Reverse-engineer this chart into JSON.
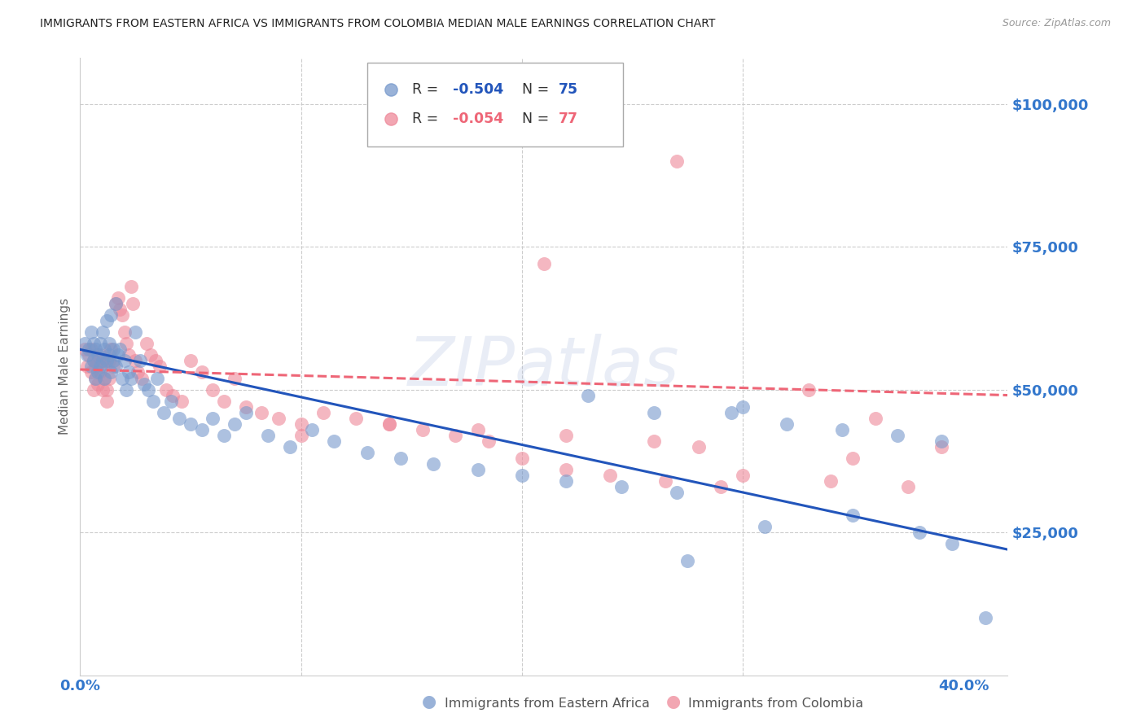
{
  "title": "IMMIGRANTS FROM EASTERN AFRICA VS IMMIGRANTS FROM COLOMBIA MEDIAN MALE EARNINGS CORRELATION CHART",
  "source": "Source: ZipAtlas.com",
  "ylabel": "Median Male Earnings",
  "xlim": [
    0.0,
    0.42
  ],
  "ylim": [
    0,
    108000
  ],
  "yticks": [
    25000,
    50000,
    75000,
    100000
  ],
  "ytick_labels": [
    "$25,000",
    "$50,000",
    "$75,000",
    "$100,000"
  ],
  "xticks": [
    0.0,
    0.1,
    0.2,
    0.3,
    0.4
  ],
  "xtick_labels": [
    "0.0%",
    "",
    "",
    "",
    "40.0%"
  ],
  "background_color": "#ffffff",
  "grid_color": "#cccccc",
  "blue_color": "#7799cc",
  "pink_color": "#ee8899",
  "blue_line_color": "#2255bb",
  "pink_line_color": "#ee6677",
  "title_color": "#222222",
  "axis_label_color": "#666666",
  "tick_label_color": "#3377cc",
  "watermark": "ZIPatlas",
  "legend_R_blue": "-0.504",
  "legend_N_blue": "75",
  "legend_R_pink": "-0.054",
  "legend_N_pink": "77",
  "legend_label_blue": "Immigrants from Eastern Africa",
  "legend_label_pink": "Immigrants from Colombia",
  "blue_scatter_x": [
    0.002,
    0.003,
    0.004,
    0.005,
    0.005,
    0.006,
    0.006,
    0.007,
    0.007,
    0.008,
    0.008,
    0.009,
    0.009,
    0.01,
    0.01,
    0.011,
    0.011,
    0.012,
    0.012,
    0.013,
    0.013,
    0.014,
    0.014,
    0.015,
    0.015,
    0.016,
    0.016,
    0.017,
    0.018,
    0.019,
    0.02,
    0.021,
    0.022,
    0.023,
    0.025,
    0.027,
    0.029,
    0.031,
    0.033,
    0.035,
    0.038,
    0.041,
    0.045,
    0.05,
    0.055,
    0.06,
    0.065,
    0.07,
    0.075,
    0.085,
    0.095,
    0.105,
    0.115,
    0.13,
    0.145,
    0.16,
    0.18,
    0.2,
    0.22,
    0.245,
    0.27,
    0.295,
    0.23,
    0.26,
    0.3,
    0.32,
    0.345,
    0.37,
    0.39,
    0.275,
    0.31,
    0.35,
    0.38,
    0.395,
    0.41
  ],
  "blue_scatter_y": [
    58000,
    56000,
    57000,
    60000,
    54000,
    55000,
    58000,
    52000,
    57000,
    53000,
    56000,
    54000,
    58000,
    55000,
    60000,
    57000,
    52000,
    62000,
    55000,
    56000,
    58000,
    53000,
    63000,
    57000,
    55000,
    54000,
    65000,
    56000,
    57000,
    52000,
    55000,
    50000,
    53000,
    52000,
    60000,
    55000,
    51000,
    50000,
    48000,
    52000,
    46000,
    48000,
    45000,
    44000,
    43000,
    45000,
    42000,
    44000,
    46000,
    42000,
    40000,
    43000,
    41000,
    39000,
    38000,
    37000,
    36000,
    35000,
    34000,
    33000,
    32000,
    46000,
    49000,
    46000,
    47000,
    44000,
    43000,
    42000,
    41000,
    20000,
    26000,
    28000,
    25000,
    23000,
    10000
  ],
  "pink_scatter_x": [
    0.002,
    0.003,
    0.004,
    0.005,
    0.005,
    0.006,
    0.006,
    0.007,
    0.007,
    0.008,
    0.008,
    0.009,
    0.009,
    0.01,
    0.01,
    0.011,
    0.011,
    0.012,
    0.012,
    0.013,
    0.013,
    0.014,
    0.015,
    0.016,
    0.017,
    0.018,
    0.019,
    0.02,
    0.021,
    0.022,
    0.023,
    0.024,
    0.025,
    0.026,
    0.028,
    0.03,
    0.032,
    0.034,
    0.036,
    0.039,
    0.042,
    0.046,
    0.05,
    0.055,
    0.06,
    0.065,
    0.07,
    0.075,
    0.082,
    0.09,
    0.1,
    0.11,
    0.125,
    0.14,
    0.155,
    0.17,
    0.185,
    0.2,
    0.22,
    0.24,
    0.265,
    0.29,
    0.27,
    0.33,
    0.36,
    0.39,
    0.1,
    0.14,
    0.18,
    0.22,
    0.26,
    0.3,
    0.34,
    0.375,
    0.21,
    0.28,
    0.35
  ],
  "pink_scatter_y": [
    57000,
    54000,
    56000,
    53000,
    57000,
    55000,
    50000,
    54000,
    52000,
    55000,
    51000,
    53000,
    56000,
    50000,
    54000,
    55000,
    52000,
    50000,
    48000,
    55000,
    52000,
    57000,
    54000,
    65000,
    66000,
    64000,
    63000,
    60000,
    58000,
    56000,
    68000,
    65000,
    55000,
    53000,
    52000,
    58000,
    56000,
    55000,
    54000,
    50000,
    49000,
    48000,
    55000,
    53000,
    50000,
    48000,
    52000,
    47000,
    46000,
    45000,
    44000,
    46000,
    45000,
    44000,
    43000,
    42000,
    41000,
    38000,
    36000,
    35000,
    34000,
    33000,
    90000,
    50000,
    45000,
    40000,
    42000,
    44000,
    43000,
    42000,
    41000,
    35000,
    34000,
    33000,
    72000,
    40000,
    38000
  ],
  "blue_trendline_x": [
    0.0,
    0.42
  ],
  "blue_trendline_y": [
    57000,
    22000
  ],
  "pink_trendline_x": [
    0.0,
    0.42
  ],
  "pink_trendline_y": [
    53500,
    49000
  ]
}
